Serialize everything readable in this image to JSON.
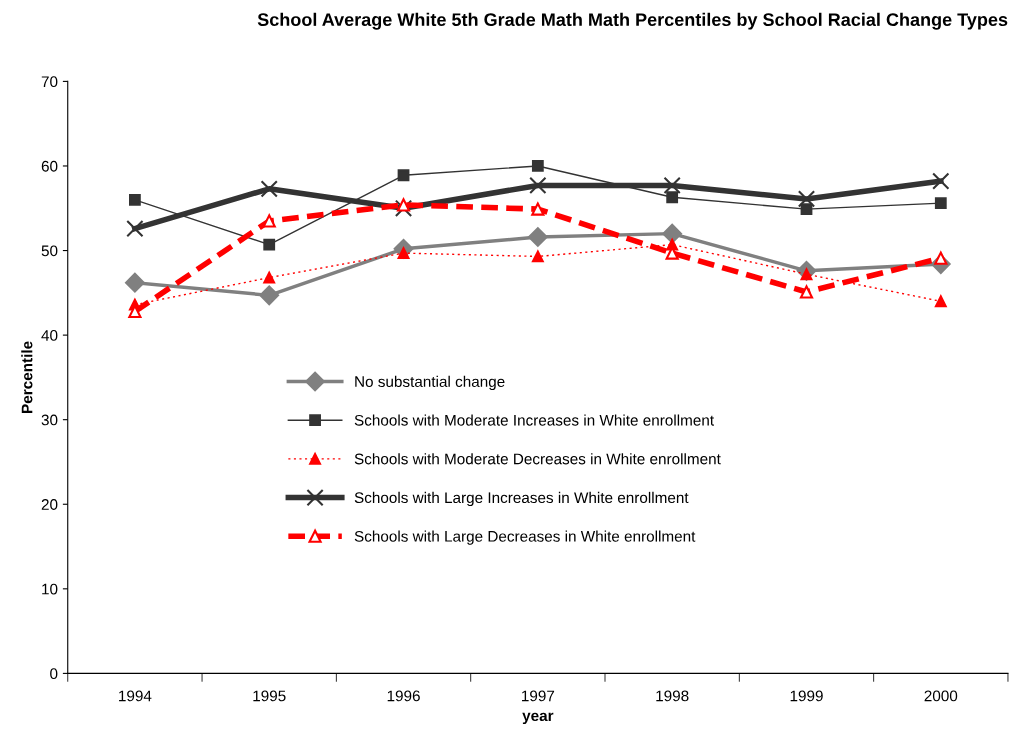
{
  "chart_data": {
    "type": "line",
    "title": "School Average White 5th Grade Math Math Percentiles by School Racial Change Types",
    "xlabel": "year",
    "ylabel": "Percentile",
    "categories": [
      "1994",
      "1995",
      "1996",
      "1997",
      "1998",
      "1999",
      "2000"
    ],
    "ylim": [
      0,
      70
    ],
    "yticks": [
      0,
      10,
      20,
      30,
      40,
      50,
      60,
      70
    ],
    "grid": false,
    "legend": "center left",
    "series": [
      {
        "name": "No substantial change",
        "color": "#808080",
        "marker": "diamond",
        "line_style": "solid",
        "values": [
          46.2,
          44.7,
          50.2,
          51.6,
          52.0,
          47.6,
          48.4
        ]
      },
      {
        "name": "Schools with Moderate Increases in White enrollment",
        "color": "#333333",
        "marker": "square",
        "line_style": "solid",
        "values": [
          56.0,
          50.7,
          58.9,
          60.0,
          56.3,
          54.9,
          55.6
        ]
      },
      {
        "name": "Schools with Moderate Decreases in White enrollment",
        "color": "#ff0000",
        "marker": "triangle",
        "line_style": "dotted",
        "values": [
          43.6,
          46.8,
          49.7,
          49.3,
          50.7,
          47.2,
          44.0
        ]
      },
      {
        "name": "Schools with Large Increases in White enrollment",
        "color": "#333333",
        "marker": "cross",
        "line_style": "solid",
        "values": [
          52.6,
          57.3,
          55.0,
          57.7,
          57.7,
          56.1,
          58.2
        ]
      },
      {
        "name": "Schools with Large Decreases in White enrollment",
        "color": "#ff0000",
        "marker": "triangle",
        "line_style": "dashed",
        "values": [
          42.8,
          53.5,
          55.4,
          54.9,
          49.7,
          45.1,
          49.1
        ]
      }
    ]
  }
}
